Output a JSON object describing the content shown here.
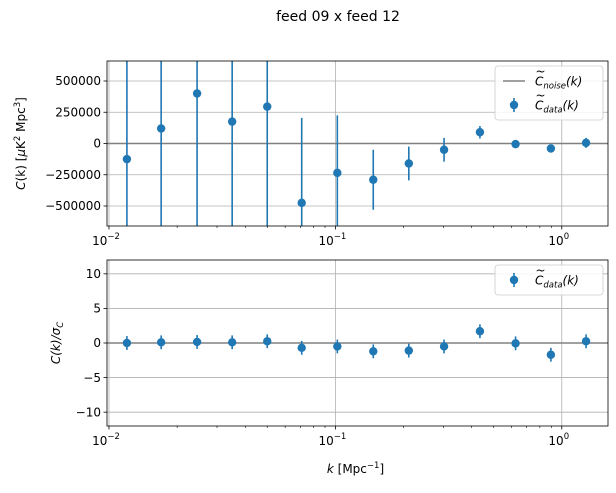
{
  "figure": {
    "title": "feed 09 x feed 12"
  },
  "colors": {
    "data": "#1f77b4",
    "noise": "#808080",
    "grid": "#b0b0b0"
  },
  "chart_data": [
    {
      "type": "scatter",
      "xscale": "log",
      "xlim": [
        0.0098,
        1.6
      ],
      "ylim": [
        -660000,
        660000
      ],
      "ylabel_parts": [
        "C",
        "(k) [",
        "μ",
        "K",
        "2",
        " Mpc",
        "3",
        "]"
      ],
      "xticks": [
        {
          "value": 0.01,
          "base": "10",
          "exp": "−2"
        },
        {
          "value": 0.1,
          "base": "10",
          "exp": "−1"
        },
        {
          "value": 1,
          "base": "10",
          "exp": "0"
        }
      ],
      "yticks": [
        {
          "value": 500000,
          "label": "500000"
        },
        {
          "value": 250000,
          "label": "250000"
        },
        {
          "value": 0,
          "label": "0"
        },
        {
          "value": -250000,
          "label": "−250000"
        },
        {
          "value": -500000,
          "label": "−500000"
        }
      ],
      "grid": true,
      "legend": {
        "position": "top-right",
        "entries": [
          {
            "kind": "line",
            "name": "C",
            "sub": "noise",
            "suffix": "(k)"
          },
          {
            "kind": "point",
            "name": "C",
            "sub": "data",
            "suffix": "(k)"
          }
        ]
      },
      "series": [
        {
          "name": "C_data(k)",
          "x": [
            0.012,
            0.017,
            0.0245,
            0.035,
            0.05,
            0.071,
            0.102,
            0.147,
            0.211,
            0.302,
            0.435,
            0.625,
            0.895,
            1.28
          ],
          "y": [
            -125000,
            120000,
            400000,
            175000,
            295000,
            -475000,
            -235000,
            -290000,
            -160000,
            -50000,
            90000,
            -5000,
            -40000,
            5000
          ],
          "err": [
            1500000,
            1500000,
            1500000,
            1500000,
            1500000,
            680000,
            460000,
            240000,
            135000,
            95000,
            50000,
            20000,
            15000,
            40000
          ]
        }
      ],
      "noise_line": {
        "y": 0
      }
    },
    {
      "type": "scatter",
      "xscale": "log",
      "xlim": [
        0.0098,
        1.6
      ],
      "ylim": [
        -12,
        12
      ],
      "ylabel_parts": [
        "C",
        "(k)/σ",
        "C"
      ],
      "xlabel_parts": [
        "k",
        " [Mpc",
        "−1",
        "]"
      ],
      "xticks": [
        {
          "value": 0.01,
          "base": "10",
          "exp": "−2"
        },
        {
          "value": 0.1,
          "base": "10",
          "exp": "−1"
        },
        {
          "value": 1,
          "base": "10",
          "exp": "0"
        }
      ],
      "yticks": [
        {
          "value": 10,
          "label": "10"
        },
        {
          "value": 5,
          "label": "5"
        },
        {
          "value": 0,
          "label": "0"
        },
        {
          "value": -5,
          "label": "−5"
        },
        {
          "value": -10,
          "label": "−10"
        }
      ],
      "grid": true,
      "legend": {
        "position": "top-right",
        "entries": [
          {
            "kind": "point",
            "name": "C",
            "sub": "data",
            "suffix": "(k)"
          }
        ]
      },
      "series": [
        {
          "name": "C_data(k)/sigma",
          "x": [
            0.012,
            0.017,
            0.0245,
            0.035,
            0.05,
            0.071,
            0.102,
            0.147,
            0.211,
            0.302,
            0.435,
            0.625,
            0.895,
            1.28
          ],
          "y": [
            0,
            0.1,
            0.15,
            0.1,
            0.25,
            -0.7,
            -0.5,
            -1.2,
            -1.1,
            -0.5,
            1.7,
            -0.05,
            -1.7,
            0.25
          ],
          "err": [
            1,
            1,
            1,
            1,
            1,
            1,
            1,
            1,
            1,
            1,
            1,
            1,
            1,
            1
          ]
        }
      ],
      "noise_line": {
        "y": 0
      }
    }
  ]
}
